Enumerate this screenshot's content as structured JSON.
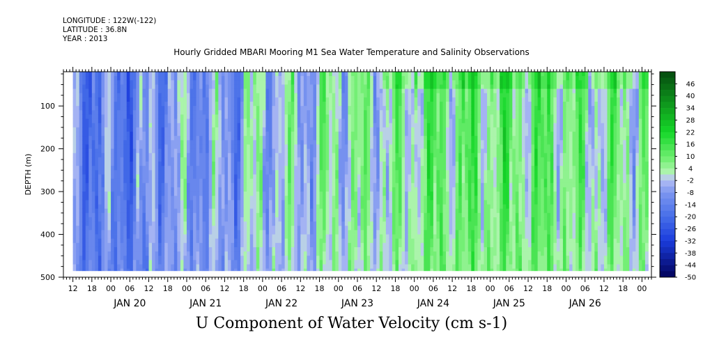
{
  "header": {
    "longitude": "LONGITUDE : 122W(-122)",
    "latitude": "LATITUDE : 36.8N",
    "year": "YEAR : 2013"
  },
  "chart_data": {
    "type": "heatmap",
    "title": "Hourly Gridded MBARI Mooring M1 Sea Water Temperature and Salinity Observations",
    "subtitle": "U Component of Water Velocity (cm s-1)",
    "ylabel": "DEPTH (m)",
    "xlabel": "",
    "x_range": [
      "2013-01-19 09:00",
      "2013-01-27 03:00"
    ],
    "data_x_range": [
      "2013-01-19 12:00",
      "2013-01-27 02:00"
    ],
    "y_range": [
      20,
      500
    ],
    "data_y_range": [
      20,
      485
    ],
    "y_inverted": true,
    "y_ticks": [
      "100",
      "200",
      "300",
      "400",
      "500"
    ],
    "x_hour_ticks": [
      "12",
      "18",
      "00",
      "06",
      "12",
      "18",
      "00",
      "06",
      "12",
      "18",
      "00",
      "06",
      "12",
      "18",
      "00",
      "06",
      "12",
      "18",
      "00",
      "06",
      "12",
      "18",
      "00",
      "06",
      "12",
      "18",
      "00",
      "06",
      "12",
      "18",
      "00",
      "06",
      "12",
      "18",
      "00",
      "06",
      "12",
      "18",
      "00",
      "06",
      "12",
      "18",
      "00"
    ],
    "x_day_labels": [
      "JAN 20",
      "JAN 21",
      "JAN 22",
      "JAN 23",
      "JAN 24",
      "JAN 25",
      "JAN 26"
    ],
    "colorbar": {
      "labels": [
        "46",
        "40",
        "34",
        "28",
        "22",
        "16",
        "10",
        "4",
        "-2",
        "-8",
        "-14",
        "-20",
        "-26",
        "-32",
        "-38",
        "-44",
        "-50"
      ],
      "min": -50,
      "max": 52,
      "step": 3
    },
    "approx_mean_u_by_period": [
      {
        "period": "JAN 19 12 - JAN 20 12",
        "value": -14
      },
      {
        "period": "JAN 20 12 - JAN 21 18",
        "value": -8
      },
      {
        "period": "JAN 21 18 - JAN 22 18",
        "value": -2
      },
      {
        "period": "JAN 22 18 - JAN 24 00",
        "value": 2
      },
      {
        "period": "JAN 24 00 - JAN 26 00",
        "value": 8
      },
      {
        "period": "JAN 26 00 - JAN 27 00",
        "value": 4
      }
    ],
    "grid": false
  }
}
